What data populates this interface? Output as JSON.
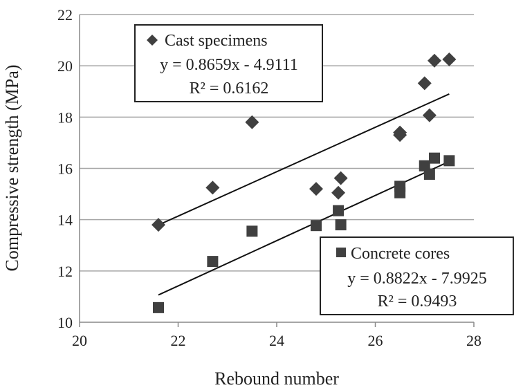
{
  "chart_data": {
    "type": "scatter",
    "xlabel": "Rebound number",
    "ylabel": "Compressive strength (MPa)",
    "xlim": [
      20,
      28
    ],
    "ylim": [
      10,
      22
    ],
    "x_ticks": [
      "20",
      "22",
      "24",
      "26",
      "28"
    ],
    "y_ticks": [
      "10",
      "12",
      "14",
      "16",
      "18",
      "20",
      "22"
    ],
    "grid": "horizontal",
    "series": [
      {
        "name": "Cast specimens",
        "marker": "diamond",
        "color": "#404040",
        "points": [
          [
            21.6,
            13.8
          ],
          [
            22.7,
            15.25
          ],
          [
            23.5,
            17.8
          ],
          [
            24.8,
            15.2
          ],
          [
            25.25,
            15.05
          ],
          [
            25.3,
            15.62
          ],
          [
            26.5,
            17.4
          ],
          [
            26.5,
            17.3
          ],
          [
            27.0,
            19.32
          ],
          [
            27.1,
            18.07
          ],
          [
            27.2,
            20.2
          ],
          [
            27.5,
            20.25
          ]
        ],
        "trendline": {
          "slope": 0.8659,
          "intercept": -4.9111,
          "x_range": [
            21.6,
            27.5
          ]
        },
        "equation": "y = 0.8659x - 4.9111",
        "r2": "R² = 0.6162"
      },
      {
        "name": "Concrete cores",
        "marker": "square",
        "color": "#404040",
        "points": [
          [
            21.6,
            10.57
          ],
          [
            22.7,
            12.37
          ],
          [
            23.5,
            13.55
          ],
          [
            24.8,
            13.77
          ],
          [
            25.25,
            14.35
          ],
          [
            25.3,
            13.8
          ],
          [
            26.5,
            15.3
          ],
          [
            26.5,
            15.05
          ],
          [
            27.0,
            16.1
          ],
          [
            27.1,
            15.77
          ],
          [
            27.2,
            16.4
          ],
          [
            27.5,
            16.3
          ]
        ],
        "trendline": {
          "slope": 0.8822,
          "intercept": -7.9925,
          "x_range": [
            21.6,
            27.5
          ]
        },
        "equation": "y = 0.8822x - 7.9925",
        "r2": "R² = 0.9493"
      }
    ]
  }
}
